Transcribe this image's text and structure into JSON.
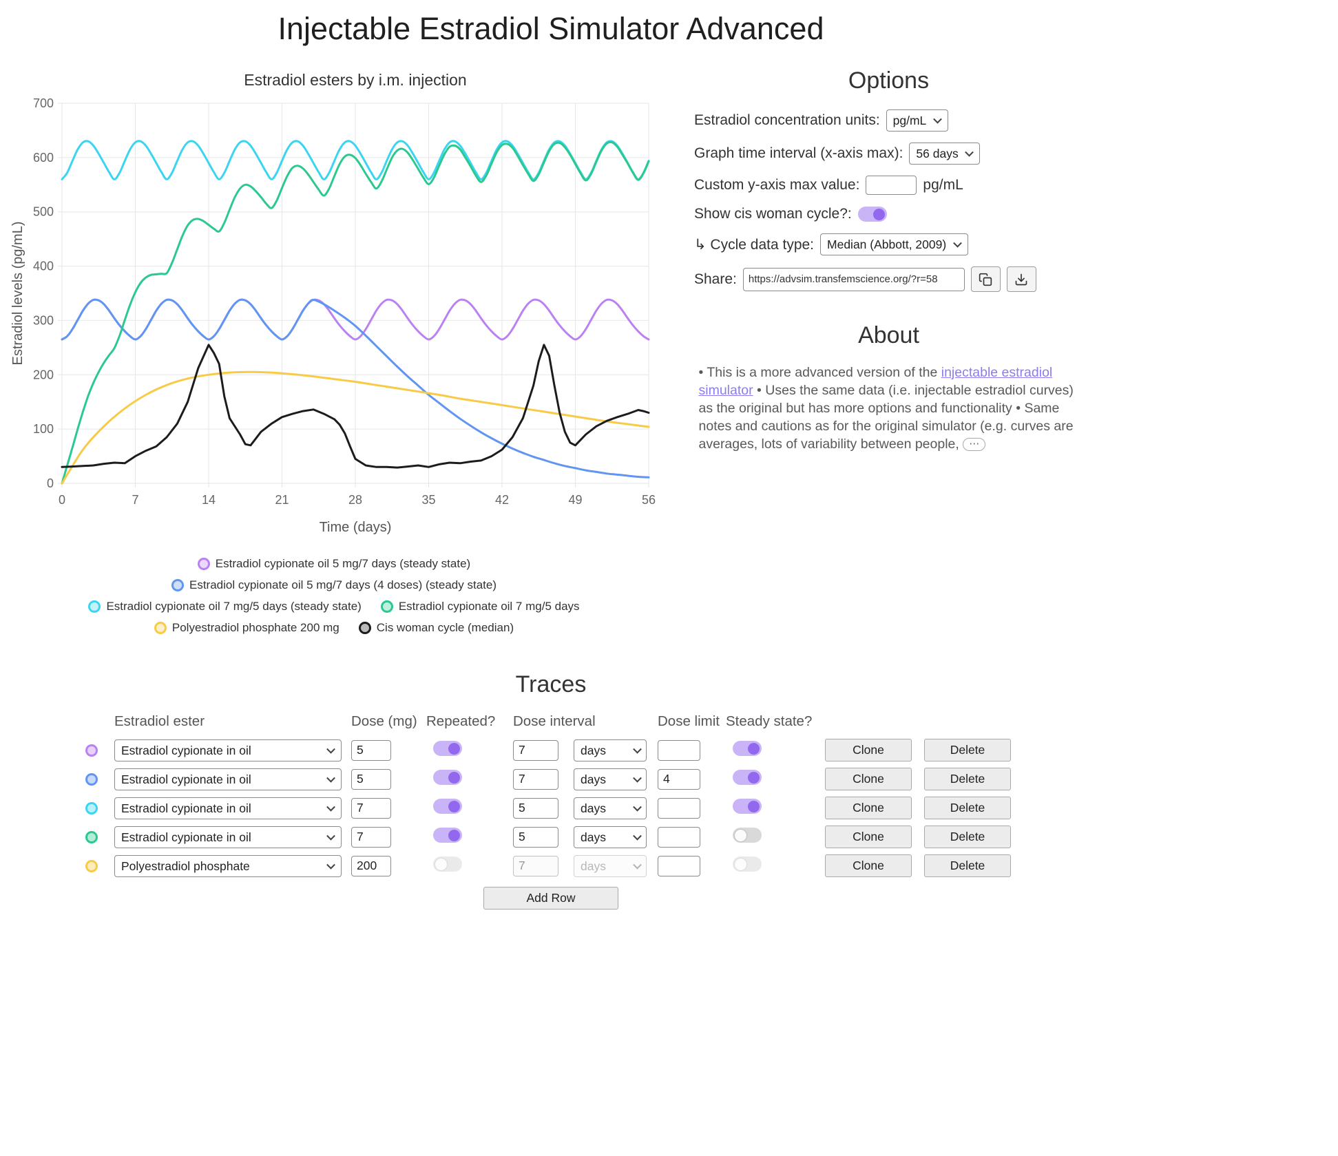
{
  "page_title": "Injectable Estradiol Simulator Advanced",
  "colors": {
    "accent_toggle_knob": "#9268ee",
    "accent_toggle_track": "#cab4f8",
    "link": "#8b7cf0",
    "grid": "#e6e6e6",
    "tick_text": "#666666"
  },
  "chart_data": {
    "type": "line",
    "title": "Estradiol esters by i.m. injection",
    "xlabel": "Time (days)",
    "ylabel": "Estradiol levels (pg/mL)",
    "xlim": [
      0,
      56
    ],
    "ylim": [
      0,
      700
    ],
    "xtick_step": 7,
    "ytick_step": 100,
    "grid": true,
    "legend_position": "bottom",
    "legend_rows": [
      [
        0
      ],
      [
        1
      ],
      [
        2,
        3
      ],
      [
        4,
        5
      ]
    ],
    "series": [
      {
        "name": "Estradiol cypionate oil 5 mg/7 days (steady state)",
        "color": "#bb80f2",
        "smooth": true,
        "x0": 0,
        "dx": 0.5,
        "y": [
          265,
          271,
          284,
          301,
          318,
          331,
          338,
          337,
          330,
          318,
          304,
          291,
          280,
          271,
          265,
          271,
          284,
          301,
          318,
          331,
          338,
          337,
          330,
          318,
          304,
          291,
          280,
          271,
          265,
          271,
          284,
          301,
          318,
          331,
          338,
          337,
          330,
          318,
          304,
          291,
          280,
          271,
          265,
          271,
          284,
          301,
          318,
          331,
          338,
          337,
          330,
          318,
          304,
          291,
          280,
          271,
          265,
          271,
          284,
          301,
          318,
          331,
          338,
          337,
          330,
          318,
          304,
          291,
          280,
          271,
          265,
          271,
          284,
          301,
          318,
          331,
          338,
          337,
          330,
          318,
          304,
          291,
          280,
          271,
          265,
          271,
          284,
          301,
          318,
          331,
          338,
          337,
          330,
          318,
          304,
          291,
          280,
          271,
          265,
          271,
          284,
          301,
          318,
          331,
          338,
          337,
          330,
          318,
          304,
          291,
          280,
          271,
          265
        ]
      },
      {
        "name": "Estradiol cypionate oil 5 mg/7 days (4 doses) (steady state)",
        "color": "#6095f2",
        "smooth": true,
        "points": [
          [
            0,
            265
          ],
          [
            0.5,
            271
          ],
          [
            1,
            284
          ],
          [
            1.5,
            301
          ],
          [
            2,
            318
          ],
          [
            2.5,
            331
          ],
          [
            3,
            338
          ],
          [
            3.5,
            337
          ],
          [
            4,
            330
          ],
          [
            4.5,
            318
          ],
          [
            5,
            304
          ],
          [
            5.5,
            291
          ],
          [
            6,
            280
          ],
          [
            6.5,
            271
          ],
          [
            7,
            265
          ],
          [
            7.5,
            271
          ],
          [
            8,
            284
          ],
          [
            8.5,
            301
          ],
          [
            9,
            318
          ],
          [
            9.5,
            331
          ],
          [
            10,
            338
          ],
          [
            10.5,
            337
          ],
          [
            11,
            330
          ],
          [
            11.5,
            318
          ],
          [
            12,
            304
          ],
          [
            12.5,
            291
          ],
          [
            13,
            280
          ],
          [
            13.5,
            271
          ],
          [
            14,
            265
          ],
          [
            14.5,
            271
          ],
          [
            15,
            284
          ],
          [
            15.5,
            301
          ],
          [
            16,
            318
          ],
          [
            16.5,
            331
          ],
          [
            17,
            338
          ],
          [
            17.5,
            337
          ],
          [
            18,
            330
          ],
          [
            18.5,
            318
          ],
          [
            19,
            304
          ],
          [
            19.5,
            291
          ],
          [
            20,
            280
          ],
          [
            20.5,
            271
          ],
          [
            21,
            265
          ],
          [
            21.5,
            271
          ],
          [
            22,
            284
          ],
          [
            22.5,
            301
          ],
          [
            23,
            318
          ],
          [
            23.5,
            331
          ],
          [
            24,
            338
          ],
          [
            25,
            330
          ],
          [
            26,
            318
          ],
          [
            27,
            305
          ],
          [
            28,
            290
          ],
          [
            29,
            272
          ],
          [
            30,
            253
          ],
          [
            31,
            234
          ],
          [
            32,
            215
          ],
          [
            33,
            197
          ],
          [
            34,
            180
          ],
          [
            35,
            163
          ],
          [
            36,
            148
          ],
          [
            37,
            133
          ],
          [
            38,
            119
          ],
          [
            39,
            106
          ],
          [
            40,
            94
          ],
          [
            41,
            83
          ],
          [
            42,
            73
          ],
          [
            43,
            64
          ],
          [
            44,
            56
          ],
          [
            45,
            49
          ],
          [
            46,
            43
          ],
          [
            47,
            37
          ],
          [
            48,
            32
          ],
          [
            49,
            28
          ],
          [
            50,
            24
          ],
          [
            51,
            21
          ],
          [
            52,
            18
          ],
          [
            53,
            16
          ],
          [
            54,
            14
          ],
          [
            55,
            12
          ],
          [
            56,
            11
          ]
        ]
      },
      {
        "name": "Estradiol cypionate oil 7 mg/5 days (steady state)",
        "color": "#3bd5f2",
        "smooth": true,
        "x0": 0,
        "dx": 0.5,
        "y": [
          560,
          572,
          594,
          615,
          628,
          630,
          622,
          607,
          590,
          573,
          560,
          572,
          594,
          615,
          628,
          630,
          622,
          607,
          590,
          573,
          560,
          572,
          594,
          615,
          628,
          630,
          622,
          607,
          590,
          573,
          560,
          572,
          594,
          615,
          628,
          630,
          622,
          607,
          590,
          573,
          560,
          572,
          594,
          615,
          628,
          630,
          622,
          607,
          590,
          573,
          560,
          572,
          594,
          615,
          628,
          630,
          622,
          607,
          590,
          573,
          560,
          572,
          594,
          615,
          628,
          630,
          622,
          607,
          590,
          573,
          560,
          572,
          594,
          615,
          628,
          630,
          622,
          607,
          590,
          573,
          560,
          572,
          594,
          615,
          628,
          630,
          622,
          607,
          590,
          573,
          560,
          572,
          594,
          615,
          628,
          630,
          622,
          607,
          590,
          573,
          560,
          572,
          594,
          615,
          628,
          630,
          622,
          607,
          590,
          573,
          560,
          572,
          594
        ]
      },
      {
        "name": "Estradiol cypionate oil 7 mg/5 days",
        "color": "#2bc98f",
        "smooth": true,
        "x0": 0,
        "dx": 0.5,
        "y": [
          0,
          33,
          66,
          100,
          132,
          161,
          185,
          205,
          222,
          236,
          249,
          272,
          301,
          329,
          352,
          369,
          379,
          384,
          385,
          386,
          387,
          406,
          431,
          456,
          475,
          485,
          487,
          483,
          476,
          469,
          464,
          480,
          504,
          527,
          543,
          550,
          547,
          538,
          527,
          515,
          507,
          521,
          544,
          566,
          581,
          585,
          580,
          569,
          555,
          541,
          530,
          543,
          566,
          588,
          602,
          605,
          599,
          586,
          570,
          555,
          543,
          556,
          578,
          600,
          613,
          616,
          609,
          595,
          579,
          563,
          551,
          563,
          585,
          606,
          620,
          622,
          615,
          600,
          584,
          567,
          555,
          567,
          589,
          610,
          623,
          625,
          618,
          603,
          586,
          570,
          557,
          569,
          591,
          612,
          625,
          627,
          619,
          605,
          588,
          571,
          558,
          570,
          592,
          613,
          626,
          628,
          620,
          605,
          589,
          572,
          559,
          571,
          593
        ]
      },
      {
        "name": "Polyestradiol phosphate 200 mg",
        "color": "#f8ca45",
        "smooth": true,
        "x0": 0,
        "dx": 2,
        "y": [
          0,
          62,
          105,
          138,
          163,
          181,
          193,
          200,
          204,
          205,
          204,
          201,
          197,
          192,
          187,
          181,
          175,
          169,
          163,
          156,
          150,
          144,
          138,
          132,
          126,
          120,
          114,
          109,
          104
        ]
      },
      {
        "name": "Cis woman cycle (median)",
        "color": "#1c1c1c",
        "smooth": false,
        "points": [
          [
            0,
            30
          ],
          [
            1,
            31
          ],
          [
            2,
            32
          ],
          [
            3,
            33
          ],
          [
            4,
            36
          ],
          [
            5,
            38
          ],
          [
            6,
            37
          ],
          [
            7,
            50
          ],
          [
            8,
            60
          ],
          [
            9,
            68
          ],
          [
            10,
            85
          ],
          [
            11,
            110
          ],
          [
            12,
            150
          ],
          [
            13,
            212
          ],
          [
            14,
            255
          ],
          [
            14.5,
            240
          ],
          [
            15,
            220
          ],
          [
            15.5,
            160
          ],
          [
            16,
            120
          ],
          [
            17,
            90
          ],
          [
            17.5,
            72
          ],
          [
            18,
            70
          ],
          [
            19,
            95
          ],
          [
            20,
            110
          ],
          [
            21,
            122
          ],
          [
            22,
            128
          ],
          [
            23,
            133
          ],
          [
            24,
            136
          ],
          [
            25,
            128
          ],
          [
            26,
            118
          ],
          [
            26.5,
            108
          ],
          [
            27,
            92
          ],
          [
            27.5,
            68
          ],
          [
            28,
            45
          ],
          [
            29,
            33
          ],
          [
            30,
            30
          ],
          [
            31,
            30
          ],
          [
            32,
            29
          ],
          [
            33,
            31
          ],
          [
            34,
            33
          ],
          [
            35,
            30
          ],
          [
            36,
            35
          ],
          [
            37,
            38
          ],
          [
            38,
            37
          ],
          [
            39,
            40
          ],
          [
            40,
            42
          ],
          [
            41,
            50
          ],
          [
            42,
            62
          ],
          [
            43,
            85
          ],
          [
            44,
            120
          ],
          [
            45,
            180
          ],
          [
            45.5,
            225
          ],
          [
            46,
            255
          ],
          [
            46.5,
            235
          ],
          [
            47,
            180
          ],
          [
            47.5,
            130
          ],
          [
            48,
            95
          ],
          [
            48.5,
            75
          ],
          [
            49,
            70
          ],
          [
            50,
            90
          ],
          [
            51,
            105
          ],
          [
            52,
            115
          ],
          [
            53,
            122
          ],
          [
            54,
            128
          ],
          [
            55,
            135
          ],
          [
            55.5,
            133
          ],
          [
            56,
            130
          ]
        ]
      }
    ]
  },
  "options_panel": {
    "heading": "Options",
    "units": {
      "label": "Estradiol concentration units:",
      "value": "pg/mL"
    },
    "interval": {
      "label": "Graph time interval (x-axis max):",
      "value": "56 days"
    },
    "ymax": {
      "label": "Custom y-axis max value:",
      "value": "",
      "suffix": "pg/mL"
    },
    "cycle_toggle": {
      "label": "Show cis woman cycle?:",
      "on": true
    },
    "cycle_type": {
      "label": "↳ Cycle data type:",
      "value": "Median (Abbott, 2009)"
    },
    "share": {
      "label": "Share:",
      "url": "https://advsim.transfemscience.org/?r=58"
    }
  },
  "about": {
    "heading": "About",
    "text1": "• This is a more advanced version of the ",
    "link1": "injectable estradiol simulator",
    "text2": " • Uses the same data (i.e. injectable estradiol curves) as the original but has more options and functionality • Same notes and cautions as for the original simulator (e.g. curves are averages, lots of variability between people,",
    "ellipsis": "⋯"
  },
  "traces": {
    "heading": "Traces",
    "columns": {
      "ester": "Estradiol ester",
      "dose": "Dose (mg)",
      "repeated": "Repeated?",
      "interval": "Dose interval",
      "limit": "Dose limit",
      "steady": "Steady state?"
    },
    "clone_label": "Clone",
    "delete_label": "Delete",
    "add_row_label": "Add Row",
    "rows": [
      {
        "color": "#bb80f2",
        "ester": "Estradiol cypionate in oil",
        "dose": "5",
        "repeated": true,
        "interval": "7",
        "unit": "days",
        "limit": "",
        "steady": true,
        "disabled": false
      },
      {
        "color": "#6095f2",
        "ester": "Estradiol cypionate in oil",
        "dose": "5",
        "repeated": true,
        "interval": "7",
        "unit": "days",
        "limit": "4",
        "steady": true,
        "disabled": false
      },
      {
        "color": "#3bd5f2",
        "ester": "Estradiol cypionate in oil",
        "dose": "7",
        "repeated": true,
        "interval": "5",
        "unit": "days",
        "limit": "",
        "steady": true,
        "disabled": false
      },
      {
        "color": "#2bc98f",
        "ester": "Estradiol cypionate in oil",
        "dose": "7",
        "repeated": true,
        "interval": "5",
        "unit": "days",
        "limit": "",
        "steady": false,
        "disabled": false
      },
      {
        "color": "#f8ca45",
        "ester": "Polyestradiol phosphate",
        "dose": "200",
        "repeated": false,
        "interval": "7",
        "unit": "days",
        "limit": "",
        "steady": false,
        "disabled": true
      }
    ]
  }
}
